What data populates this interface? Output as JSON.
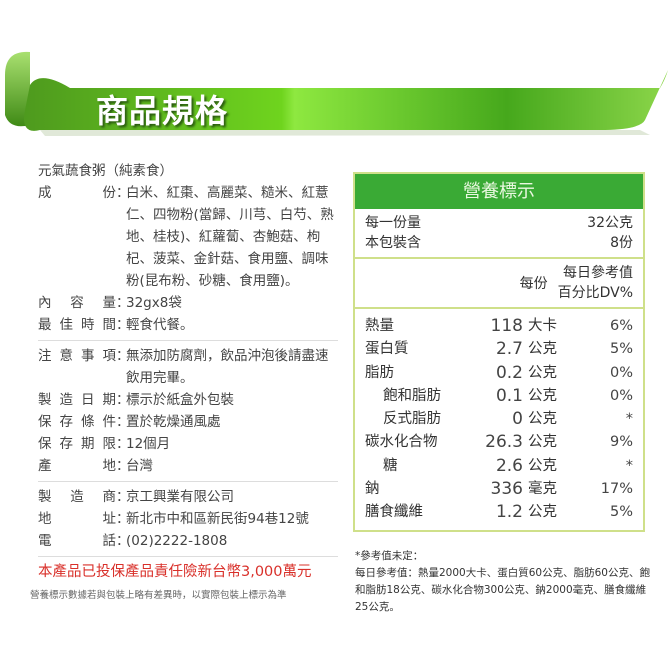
{
  "banner": {
    "title": "商品規格"
  },
  "product": {
    "name": "元氣蔬食粥（純素食）",
    "specs": [
      {
        "label": "成　份",
        "value": "白米、紅棗、高麗菜、糙米、紅薏仁、四物粉(當歸、川芎、白芍、熟地、桂枝)、紅蘿蔔、杏鮑菇、枸杞、菠菜、金針菇、食用鹽、調味粉(昆布粉、砂糖、食用鹽)。"
      },
      {
        "label": "內容量",
        "value": "32gx8袋"
      },
      {
        "label": "最佳時間",
        "value": "輕食代餐。"
      }
    ],
    "care": [
      {
        "label": "注意事項",
        "value": "無添加防腐劑，飲品沖泡後請盡速飲用完畢。"
      },
      {
        "label": "製造日期",
        "value": "標示於紙盒外包裝"
      },
      {
        "label": "保存條件",
        "value": "置於乾燥通風處"
      },
      {
        "label": "保存期限",
        "value": "12個月"
      },
      {
        "label": "產　地",
        "value": "台灣"
      }
    ],
    "maker": [
      {
        "label": "製造商",
        "value": "京工興業有限公司"
      },
      {
        "label": "地　址",
        "value": "新北市中和區新民街94巷12號"
      },
      {
        "label": "電　話",
        "value": "(02)2222-1808"
      }
    ],
    "insurance": "本產品已投保產品責任險新台幣3,000萬元",
    "disclaimer": "營養標示數據若與包裝上略有差異時，以實際包裝上標示為準"
  },
  "nutrition": {
    "title": "營養標示",
    "serving_label": "每一份量",
    "serving_value": "32公克",
    "servings_label": "本包裝含",
    "servings_value": "8份",
    "per_serving": "每份",
    "dv_header1": "每日參考值",
    "dv_header2": "百分比DV%",
    "rows": [
      {
        "name": "熱量",
        "value": "118",
        "unit": "大卡",
        "dv": "6%",
        "indent": false
      },
      {
        "name": "蛋白質",
        "value": "2.7",
        "unit": "公克",
        "dv": "5%",
        "indent": false
      },
      {
        "name": "脂肪",
        "value": "0.2",
        "unit": "公克",
        "dv": "0%",
        "indent": false
      },
      {
        "name": "飽和脂肪",
        "value": "0.1",
        "unit": "公克",
        "dv": "0%",
        "indent": true
      },
      {
        "name": "反式脂肪",
        "value": "0",
        "unit": "公克",
        "dv": "*",
        "indent": true
      },
      {
        "name": "碳水化合物",
        "value": "26.3",
        "unit": "公克",
        "dv": "9%",
        "indent": false
      },
      {
        "name": "糖",
        "value": "2.6",
        "unit": "公克",
        "dv": "*",
        "indent": true
      },
      {
        "name": "鈉",
        "value": "336",
        "unit": "毫克",
        "dv": "17%",
        "indent": false
      },
      {
        "name": "膳食纖維",
        "value": "1.2",
        "unit": "公克",
        "dv": "5%",
        "indent": false
      }
    ],
    "ref_note": "*參考值未定：",
    "ref_text": "每日參考值：熱量2000大卡、蛋白質60公克、脂肪60公克、飽和脂肪18公克、碳水化合物300公克、鈉2000毫克、膳食纖維25公克。"
  },
  "colors": {
    "green": "#3aaa35",
    "border": "#cfe08a",
    "red": "#d9302a"
  }
}
